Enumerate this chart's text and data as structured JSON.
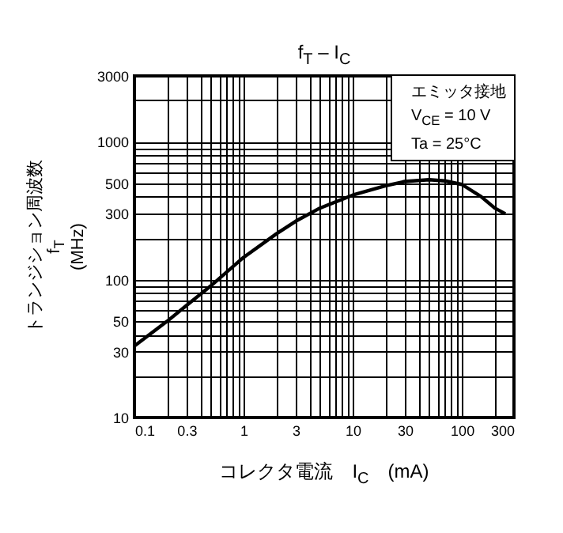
{
  "chart_data": {
    "type": "line",
    "title": "f$_{T}$ – I$_{C}$",
    "xlabel": "コレクタ電流　I$_{C}$　(mA)",
    "ylabel": "トランジション周波数\nf$_{T}$\n(MHz)",
    "annotations": [
      "エミッタ接地",
      "V$_{CE}$ = 10 V",
      "Ta = 25°C"
    ],
    "log": "xy",
    "grid": true,
    "x": [
      0.1,
      0.2,
      0.3,
      0.5,
      1,
      2,
      3,
      5,
      10,
      20,
      30,
      50,
      70,
      100,
      150,
      200,
      250
    ],
    "series": [
      {
        "color": "#000000",
        "values": [
          33,
          50,
          65,
          90,
          145,
          215,
          265,
          330,
          410,
          480,
          515,
          530,
          520,
          490,
          400,
          330,
          300
        ]
      }
    ],
    "xlim": [
      0.1,
      300
    ],
    "ylim": [
      10,
      3000
    ],
    "xticks": [
      0.1,
      {
        "value": 0.2,
        "label": null
      },
      0.3,
      {
        "value": 0.4,
        "label": null
      },
      {
        "value": 0.5,
        "label": null
      },
      {
        "value": 0.6,
        "label": null
      },
      {
        "value": 0.7,
        "label": null
      },
      {
        "value": 0.8,
        "label": null
      },
      {
        "value": 0.9,
        "label": null
      },
      1,
      {
        "value": 2,
        "label": null
      },
      3,
      {
        "value": 4,
        "label": null
      },
      {
        "value": 5,
        "label": null
      },
      {
        "value": 6,
        "label": null
      },
      {
        "value": 7,
        "label": null
      },
      {
        "value": 8,
        "label": null
      },
      {
        "value": 9,
        "label": null
      },
      10,
      {
        "value": 20,
        "label": null
      },
      30,
      {
        "value": 40,
        "label": null
      },
      {
        "value": 50,
        "label": null
      },
      {
        "value": 60,
        "label": null
      },
      {
        "value": 70,
        "label": null
      },
      {
        "value": 80,
        "label": null
      },
      {
        "value": 90,
        "label": null
      },
      100,
      {
        "value": 200,
        "label": null
      },
      300
    ],
    "yticks": [
      10,
      {
        "value": 20,
        "label": null
      },
      30,
      {
        "value": 40,
        "label": null
      },
      50,
      {
        "value": 60,
        "label": null
      },
      {
        "value": 70,
        "label": null
      },
      {
        "value": 80,
        "label": null
      },
      {
        "value": 90,
        "label": null
      },
      100,
      {
        "value": 200,
        "label": null
      },
      300,
      {
        "value": 400,
        "label": null
      },
      500,
      {
        "value": 600,
        "label": null
      },
      {
        "value": 700,
        "label": null
      },
      {
        "value": 800,
        "label": null
      },
      {
        "value": 900,
        "label": null
      },
      1000,
      {
        "value": 2000,
        "label": null
      },
      3000
    ]
  }
}
